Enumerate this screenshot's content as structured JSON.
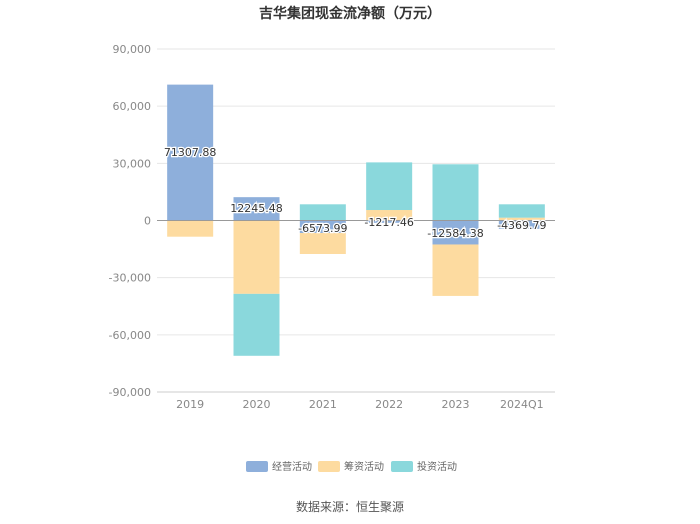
{
  "chart_data": {
    "type": "bar",
    "stacked": true,
    "title": "吉华集团现金流净额（万元）",
    "categories": [
      "2019",
      "2020",
      "2021",
      "2022",
      "2023",
      "2024Q1"
    ],
    "ylim": [
      -90000,
      90000
    ],
    "yticks": [
      90000,
      60000,
      30000,
      0,
      -30000,
      -60000,
      -90000
    ],
    "ytick_labels": [
      "90,000",
      "60,000",
      "30,000",
      "0",
      "-30,000",
      "-60,000",
      "-90,000"
    ],
    "grid": true,
    "legend_position": "bottom",
    "series": [
      {
        "name": "经营活动",
        "color": "#8eafdb",
        "values": [
          71307.88,
          12245.48,
          -6573.99,
          -1217.46,
          -12584.38,
          -4369.79
        ],
        "labels": [
          "71307.88",
          "12245.48",
          "-6573.99",
          "-1217.46",
          "-12584.38",
          "-4369.79"
        ]
      },
      {
        "name": "筹资活动",
        "color": "#fddba0",
        "values": [
          -8500,
          -38500,
          -11000,
          5500,
          -27000,
          1500
        ]
      },
      {
        "name": "投资活动",
        "color": "#8ad8dc",
        "values": [
          0,
          -32500,
          8500,
          25000,
          29500,
          7000
        ]
      }
    ]
  },
  "source": "数据来源：恒生聚源"
}
